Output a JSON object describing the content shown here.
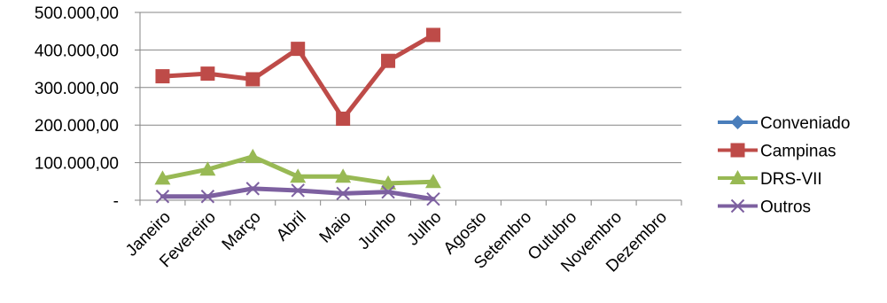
{
  "chart_data": {
    "type": "line",
    "categories": [
      "Janeiro",
      "Fevereiro",
      "Março",
      "Abril",
      "Maio",
      "Junho",
      "Julho",
      "Agosto",
      "Setembro",
      "Outubro",
      "Novembro",
      "Dezembro"
    ],
    "y_ticks": [
      "-",
      "100.000,00",
      "200.000,00",
      "300.000,00",
      "400.000,00",
      "500.000,00"
    ],
    "ylim": [
      0,
      500000
    ],
    "grid": true,
    "legend_position": "right",
    "series": [
      {
        "name": "Conveniado",
        "color": "#4a7ebb",
        "marker": "diamond",
        "values": [
          null,
          null,
          null,
          null,
          null,
          null,
          null,
          null,
          null,
          null,
          null,
          null
        ]
      },
      {
        "name": "Campinas",
        "color": "#be4b48",
        "marker": "square",
        "values": [
          330000,
          337000,
          322000,
          403000,
          217000,
          371000,
          440000,
          null,
          null,
          null,
          null,
          null
        ]
      },
      {
        "name": "DRS-VII",
        "color": "#98b954",
        "marker": "triangle",
        "values": [
          58000,
          82000,
          116000,
          63000,
          63000,
          45000,
          49000,
          null,
          null,
          null,
          null,
          null
        ]
      },
      {
        "name": "Outros",
        "color": "#7d60a0",
        "marker": "x",
        "values": [
          10000,
          10000,
          31000,
          26000,
          18000,
          22000,
          3000,
          null,
          null,
          null,
          null,
          null
        ]
      }
    ]
  }
}
